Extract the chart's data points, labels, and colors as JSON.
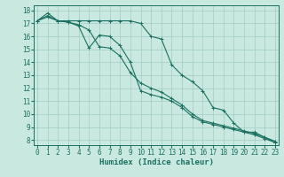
{
  "xlabel": "Humidex (Indice chaleur)",
  "bg_color": "#c8e8e0",
  "grid_color": "#a0ccc4",
  "line_color": "#1a7060",
  "xlim": [
    -0.3,
    23.3
  ],
  "ylim": [
    7.6,
    18.4
  ],
  "yticks": [
    8,
    9,
    10,
    11,
    12,
    13,
    14,
    15,
    16,
    17,
    18
  ],
  "xticks": [
    0,
    1,
    2,
    3,
    4,
    5,
    6,
    7,
    8,
    9,
    10,
    11,
    12,
    13,
    14,
    15,
    16,
    17,
    18,
    19,
    20,
    21,
    22,
    23
  ],
  "series": [
    {
      "x": [
        0,
        1,
        2,
        3,
        4,
        5,
        6,
        7,
        8,
        9,
        10,
        11,
        12,
        13,
        14,
        15,
        16,
        17,
        18,
        19,
        20,
        21,
        22,
        23
      ],
      "y": [
        17.2,
        17.5,
        17.2,
        17.2,
        17.2,
        17.2,
        17.2,
        17.2,
        17.2,
        17.2,
        17.0,
        16.0,
        15.8,
        13.8,
        13.0,
        12.5,
        11.8,
        10.5,
        10.3,
        9.3,
        8.6,
        8.6,
        8.2,
        7.8
      ]
    },
    {
      "x": [
        0,
        1,
        2,
        3,
        4,
        5,
        6,
        7,
        8,
        9,
        10,
        11,
        12,
        13,
        14,
        15,
        16,
        17,
        18,
        19,
        20,
        21,
        22,
        23
      ],
      "y": [
        17.2,
        17.8,
        17.2,
        17.1,
        16.8,
        15.1,
        16.1,
        16.0,
        15.3,
        14.0,
        11.8,
        11.5,
        11.3,
        11.0,
        10.5,
        9.8,
        9.4,
        9.2,
        9.0,
        8.8,
        8.6,
        8.4,
        8.1,
        7.8
      ]
    },
    {
      "x": [
        0,
        1,
        2,
        3,
        4,
        5,
        6,
        7,
        8,
        9,
        10,
        11,
        12,
        13,
        14,
        15,
        16,
        17,
        18,
        19,
        20,
        21,
        22,
        23
      ],
      "y": [
        17.2,
        17.6,
        17.2,
        17.1,
        16.9,
        16.5,
        15.2,
        15.1,
        14.5,
        13.2,
        12.4,
        12.0,
        11.7,
        11.2,
        10.7,
        10.0,
        9.5,
        9.3,
        9.1,
        8.9,
        8.7,
        8.5,
        8.2,
        7.9
      ]
    }
  ],
  "marker": "+",
  "markersize": 3,
  "linewidth": 0.8,
  "tick_fontsize": 5.5,
  "xlabel_fontsize": 6.5
}
